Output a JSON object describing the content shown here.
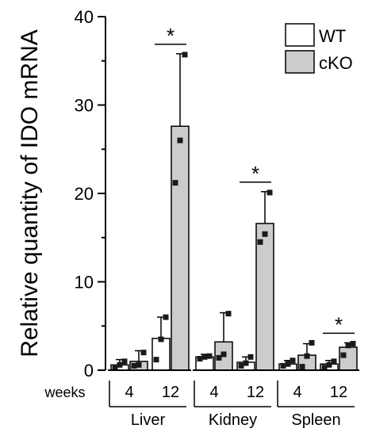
{
  "chart_data": {
    "type": "bar",
    "title": "",
    "ylabel": "Relative quantity of IDO mRNA",
    "ylim": [
      0,
      40
    ],
    "yticks": [
      0,
      10,
      20,
      30,
      40
    ],
    "x_row_label": "weeks",
    "legend": {
      "position": "top-right"
    },
    "series": [
      {
        "name": "WT",
        "color": "#ffffff"
      },
      {
        "name": "cKO",
        "color": "#cccccc"
      }
    ],
    "groups": [
      {
        "tissue": "Liver",
        "timepoints": [
          {
            "week": "4",
            "WT": {
              "mean": 0.6,
              "error": 0.6,
              "points": [
                0.3,
                0.6,
                1.0
              ]
            },
            "cKO": {
              "mean": 1.0,
              "error": 1.2,
              "points": [
                0.5,
                0.6,
                2.0
              ]
            },
            "significant": false
          },
          {
            "week": "12",
            "WT": {
              "mean": 3.6,
              "error": 2.4,
              "points": [
                1.2,
                3.5,
                6.0
              ]
            },
            "cKO": {
              "mean": 27.6,
              "error": 8.2,
              "points": [
                21.2,
                26.0,
                35.7
              ]
            },
            "significant": true
          }
        ]
      },
      {
        "tissue": "Kidney",
        "timepoints": [
          {
            "week": "4",
            "WT": {
              "mean": 1.5,
              "error": 0.3,
              "points": [
                1.3,
                1.5,
                1.6
              ]
            },
            "cKO": {
              "mean": 3.2,
              "error": 3.3,
              "points": [
                1.4,
                1.8,
                6.4
              ]
            },
            "significant": false
          },
          {
            "week": "12",
            "WT": {
              "mean": 0.9,
              "error": 0.6,
              "points": [
                0.5,
                0.8,
                1.5
              ]
            },
            "cKO": {
              "mean": 16.6,
              "error": 3.6,
              "points": [
                14.5,
                15.4,
                20.1
              ]
            },
            "significant": true
          }
        ]
      },
      {
        "tissue": "Spleen",
        "timepoints": [
          {
            "week": "4",
            "WT": {
              "mean": 0.7,
              "error": 0.4,
              "points": [
                0.5,
                0.7,
                1.1
              ]
            },
            "cKO": {
              "mean": 1.7,
              "error": 1.3,
              "points": [
                0.4,
                1.6,
                3.1
              ]
            },
            "significant": false
          },
          {
            "week": "12",
            "WT": {
              "mean": 0.7,
              "error": 0.4,
              "points": [
                0.3,
                0.6,
                1.0
              ]
            },
            "cKO": {
              "mean": 2.6,
              "error": 0.5,
              "points": [
                1.7,
                2.8,
                3.0
              ]
            },
            "significant": true
          }
        ]
      }
    ],
    "significance_label": "*"
  }
}
